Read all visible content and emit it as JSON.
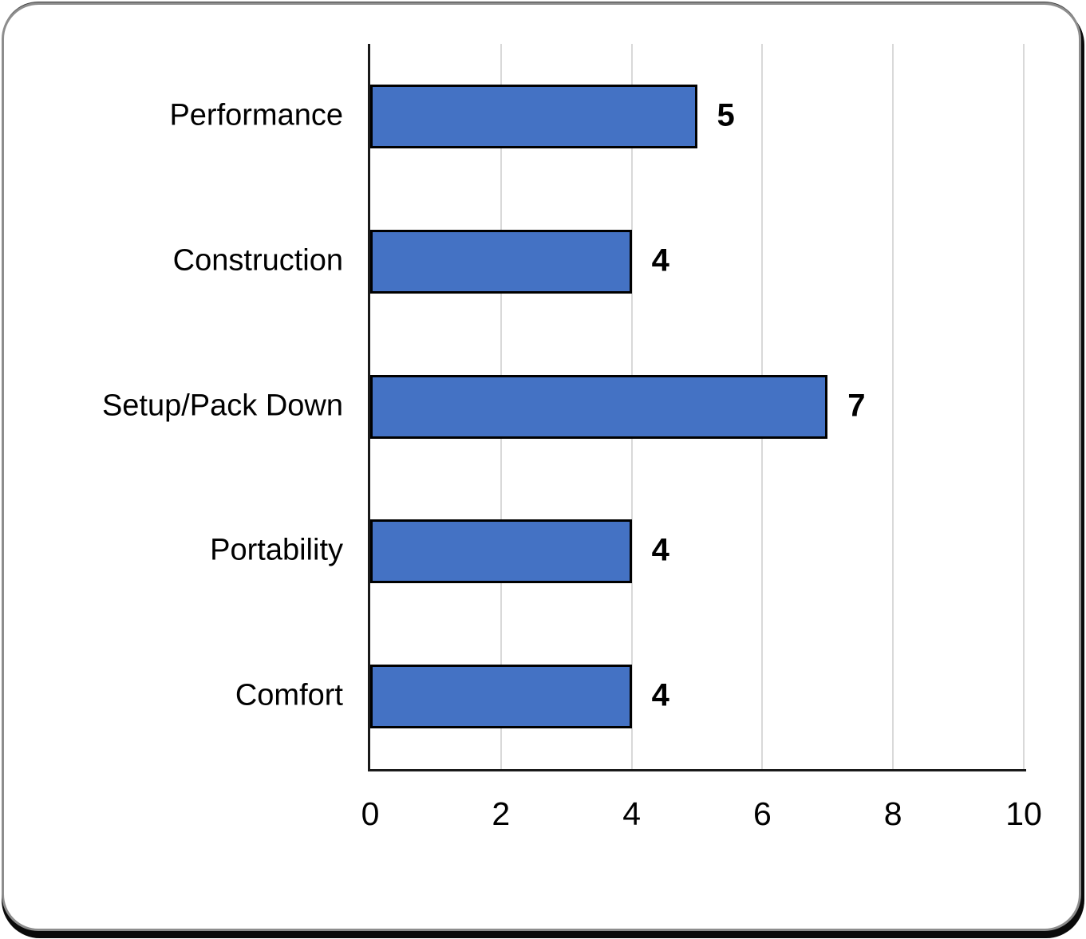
{
  "chart_data": {
    "type": "bar",
    "orientation": "horizontal",
    "title": "",
    "xlabel": "",
    "ylabel": "",
    "categories": [
      "Performance",
      "Construction",
      "Setup/Pack Down",
      "Portability",
      "Comfort"
    ],
    "values": [
      5,
      4,
      7,
      4,
      4
    ],
    "data_labels": [
      "5",
      "4",
      "7",
      "4",
      "4"
    ],
    "xlim": [
      0,
      10
    ],
    "x_ticks": [
      0,
      2,
      4,
      6,
      8,
      10
    ],
    "grid": "vertical-gridlines-on",
    "legend": "none",
    "colors": {
      "bar_fill": "#4472C4",
      "bar_border": "#000000",
      "gridline": "#D9D9D9",
      "axis": "#1A1A1A",
      "text": "#000000",
      "card_background": "#FFFFFF",
      "card_border": "#8D8D8D",
      "card_shadow": "#0A0A0A"
    }
  }
}
